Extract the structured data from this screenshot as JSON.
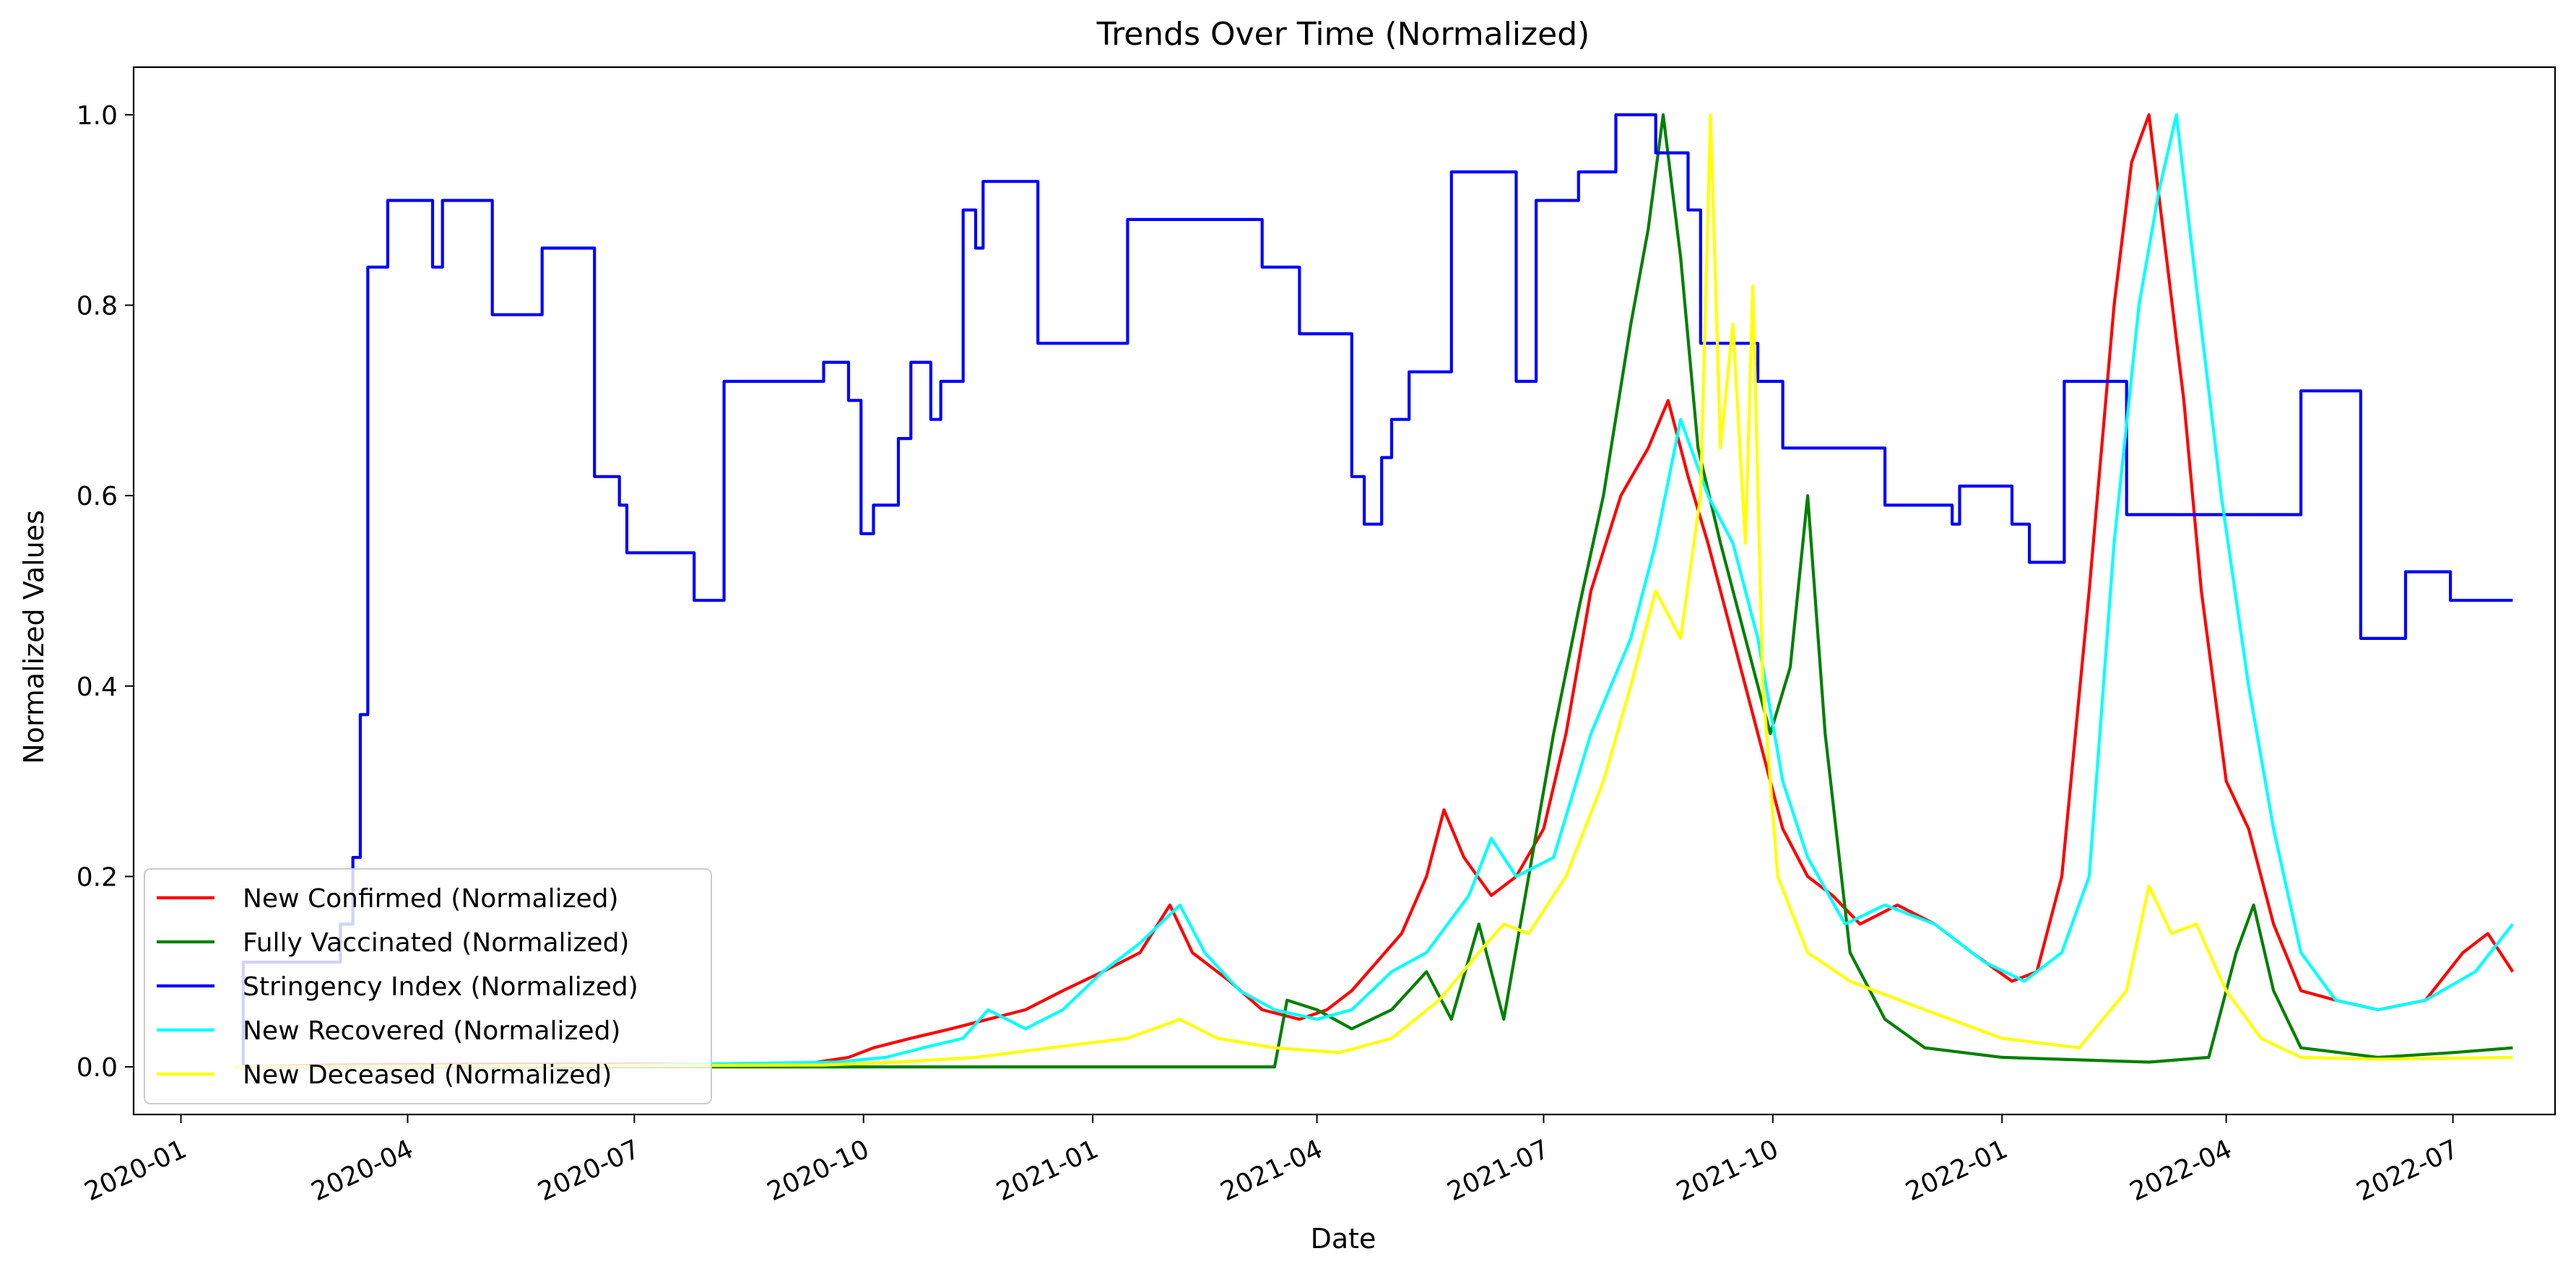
{
  "chart_data": {
    "type": "line",
    "title": "Trends Over Time (Normalized)",
    "xlabel": "Date",
    "ylabel": "Normalized Values",
    "xlim": [
      "2019-12-13",
      "2022-08-11"
    ],
    "ylim": [
      -0.05,
      1.05
    ],
    "grid": false,
    "legend_position": "lower-left",
    "x_ticks": [
      "2020-01",
      "2020-04",
      "2020-07",
      "2020-10",
      "2021-01",
      "2021-04",
      "2021-07",
      "2021-10",
      "2022-01",
      "2022-04",
      "2022-07"
    ],
    "y_ticks": [
      "0.0",
      "0.2",
      "0.4",
      "0.6",
      "0.8",
      "1.0"
    ],
    "series": [
      {
        "name": "New Confirmed (Normalized)",
        "color": "#ff0000",
        "points": [
          [
            "2020-01-22",
            0
          ],
          [
            "2020-03-01",
            0.002
          ],
          [
            "2020-05-01",
            0.003
          ],
          [
            "2020-07-01",
            0.003
          ],
          [
            "2020-08-15",
            0.003
          ],
          [
            "2020-09-10",
            0.004
          ],
          [
            "2020-09-25",
            0.01
          ],
          [
            "2020-10-05",
            0.02
          ],
          [
            "2020-10-20",
            0.03
          ],
          [
            "2020-11-05",
            0.04
          ],
          [
            "2020-11-20",
            0.05
          ],
          [
            "2020-12-05",
            0.06
          ],
          [
            "2020-12-20",
            0.08
          ],
          [
            "2021-01-05",
            0.1
          ],
          [
            "2021-01-20",
            0.12
          ],
          [
            "2021-02-01",
            0.17
          ],
          [
            "2021-02-10",
            0.12
          ],
          [
            "2021-02-25",
            0.09
          ],
          [
            "2021-03-10",
            0.06
          ],
          [
            "2021-03-25",
            0.05
          ],
          [
            "2021-04-05",
            0.06
          ],
          [
            "2021-04-15",
            0.08
          ],
          [
            "2021-04-25",
            0.11
          ],
          [
            "2021-05-05",
            0.14
          ],
          [
            "2021-05-15",
            0.2
          ],
          [
            "2021-05-22",
            0.27
          ],
          [
            "2021-05-30",
            0.22
          ],
          [
            "2021-06-10",
            0.18
          ],
          [
            "2021-06-20",
            0.2
          ],
          [
            "2021-07-01",
            0.25
          ],
          [
            "2021-07-10",
            0.35
          ],
          [
            "2021-07-20",
            0.5
          ],
          [
            "2021-08-01",
            0.6
          ],
          [
            "2021-08-12",
            0.65
          ],
          [
            "2021-08-20",
            0.7
          ],
          [
            "2021-08-28",
            0.62
          ],
          [
            "2021-09-05",
            0.55
          ],
          [
            "2021-09-15",
            0.45
          ],
          [
            "2021-09-25",
            0.35
          ],
          [
            "2021-10-05",
            0.25
          ],
          [
            "2021-10-15",
            0.2
          ],
          [
            "2021-10-25",
            0.18
          ],
          [
            "2021-11-05",
            0.15
          ],
          [
            "2021-11-20",
            0.17
          ],
          [
            "2021-12-05",
            0.15
          ],
          [
            "2021-12-20",
            0.12
          ],
          [
            "2022-01-05",
            0.09
          ],
          [
            "2022-01-15",
            0.1
          ],
          [
            "2022-01-25",
            0.2
          ],
          [
            "2022-02-05",
            0.5
          ],
          [
            "2022-02-15",
            0.8
          ],
          [
            "2022-02-22",
            0.95
          ],
          [
            "2022-03-01",
            1.0
          ],
          [
            "2022-03-08",
            0.85
          ],
          [
            "2022-03-15",
            0.7
          ],
          [
            "2022-03-22",
            0.5
          ],
          [
            "2022-04-01",
            0.3
          ],
          [
            "2022-04-10",
            0.25
          ],
          [
            "2022-04-20",
            0.15
          ],
          [
            "2022-05-01",
            0.08
          ],
          [
            "2022-05-15",
            0.07
          ],
          [
            "2022-06-01",
            0.06
          ],
          [
            "2022-06-20",
            0.07
          ],
          [
            "2022-07-05",
            0.12
          ],
          [
            "2022-07-15",
            0.14
          ],
          [
            "2022-07-25",
            0.1
          ]
        ]
      },
      {
        "name": "Fully Vaccinated (Normalized)",
        "color": "#008000",
        "points": [
          [
            "2020-01-22",
            0
          ],
          [
            "2021-03-15",
            0
          ],
          [
            "2021-03-20",
            0.07
          ],
          [
            "2021-04-01",
            0.06
          ],
          [
            "2021-04-15",
            0.04
          ],
          [
            "2021-05-01",
            0.06
          ],
          [
            "2021-05-15",
            0.1
          ],
          [
            "2021-05-25",
            0.05
          ],
          [
            "2021-06-05",
            0.15
          ],
          [
            "2021-06-15",
            0.05
          ],
          [
            "2021-06-25",
            0.2
          ],
          [
            "2021-07-05",
            0.35
          ],
          [
            "2021-07-15",
            0.48
          ],
          [
            "2021-07-25",
            0.6
          ],
          [
            "2021-08-05",
            0.78
          ],
          [
            "2021-08-12",
            0.88
          ],
          [
            "2021-08-18",
            1.0
          ],
          [
            "2021-08-25",
            0.85
          ],
          [
            "2021-09-01",
            0.65
          ],
          [
            "2021-09-10",
            0.55
          ],
          [
            "2021-09-20",
            0.45
          ],
          [
            "2021-09-30",
            0.35
          ],
          [
            "2021-10-08",
            0.42
          ],
          [
            "2021-10-15",
            0.6
          ],
          [
            "2021-10-22",
            0.35
          ],
          [
            "2021-11-01",
            0.12
          ],
          [
            "2021-11-15",
            0.05
          ],
          [
            "2021-12-01",
            0.02
          ],
          [
            "2022-01-01",
            0.01
          ],
          [
            "2022-03-01",
            0.005
          ],
          [
            "2022-03-25",
            0.01
          ],
          [
            "2022-04-05",
            0.12
          ],
          [
            "2022-04-12",
            0.17
          ],
          [
            "2022-04-20",
            0.08
          ],
          [
            "2022-05-01",
            0.02
          ],
          [
            "2022-06-01",
            0.01
          ],
          [
            "2022-07-01",
            0.015
          ],
          [
            "2022-07-25",
            0.02
          ]
        ]
      },
      {
        "name": "Stringency Index (Normalized)",
        "color": "#0000ff",
        "step": true,
        "points": [
          [
            "2020-01-22",
            0
          ],
          [
            "2020-01-26",
            0.11
          ],
          [
            "2020-02-15",
            0.11
          ],
          [
            "2020-03-05",
            0.15
          ],
          [
            "2020-03-10",
            0.22
          ],
          [
            "2020-03-13",
            0.37
          ],
          [
            "2020-03-16",
            0.84
          ],
          [
            "2020-03-24",
            0.91
          ],
          [
            "2020-04-11",
            0.84
          ],
          [
            "2020-04-15",
            0.91
          ],
          [
            "2020-05-05",
            0.79
          ],
          [
            "2020-05-25",
            0.86
          ],
          [
            "2020-06-15",
            0.62
          ],
          [
            "2020-06-25",
            0.59
          ],
          [
            "2020-06-28",
            0.54
          ],
          [
            "2020-07-25",
            0.49
          ],
          [
            "2020-08-06",
            0.72
          ],
          [
            "2020-09-15",
            0.74
          ],
          [
            "2020-09-25",
            0.7
          ],
          [
            "2020-09-30",
            0.56
          ],
          [
            "2020-10-05",
            0.59
          ],
          [
            "2020-10-15",
            0.66
          ],
          [
            "2020-10-20",
            0.74
          ],
          [
            "2020-10-28",
            0.68
          ],
          [
            "2020-11-01",
            0.72
          ],
          [
            "2020-11-10",
            0.9
          ],
          [
            "2020-11-15",
            0.86
          ],
          [
            "2020-11-18",
            0.93
          ],
          [
            "2020-12-10",
            0.76
          ],
          [
            "2021-01-15",
            0.89
          ],
          [
            "2021-03-10",
            0.84
          ],
          [
            "2021-03-25",
            0.77
          ],
          [
            "2021-04-15",
            0.62
          ],
          [
            "2021-04-20",
            0.57
          ],
          [
            "2021-04-27",
            0.64
          ],
          [
            "2021-05-01",
            0.68
          ],
          [
            "2021-05-08",
            0.73
          ],
          [
            "2021-05-25",
            0.94
          ],
          [
            "2021-06-20",
            0.72
          ],
          [
            "2021-06-28",
            0.91
          ],
          [
            "2021-07-15",
            0.94
          ],
          [
            "2021-07-30",
            1.0
          ],
          [
            "2021-08-15",
            0.96
          ],
          [
            "2021-08-28",
            0.9
          ],
          [
            "2021-09-02",
            0.76
          ],
          [
            "2021-09-25",
            0.72
          ],
          [
            "2021-10-05",
            0.65
          ],
          [
            "2021-11-15",
            0.59
          ],
          [
            "2021-12-12",
            0.57
          ],
          [
            "2021-12-15",
            0.61
          ],
          [
            "2022-01-05",
            0.57
          ],
          [
            "2022-01-12",
            0.53
          ],
          [
            "2022-01-26",
            0.72
          ],
          [
            "2022-02-20",
            0.58
          ],
          [
            "2022-05-01",
            0.71
          ],
          [
            "2022-05-25",
            0.45
          ],
          [
            "2022-06-12",
            0.52
          ],
          [
            "2022-06-30",
            0.49
          ],
          [
            "2022-07-25",
            0.49
          ]
        ]
      },
      {
        "name": "New Recovered (Normalized)",
        "color": "#00ffff",
        "points": [
          [
            "2020-01-22",
            0
          ],
          [
            "2020-07-01",
            0.002
          ],
          [
            "2020-09-20",
            0.005
          ],
          [
            "2020-10-10",
            0.01
          ],
          [
            "2020-10-25",
            0.02
          ],
          [
            "2020-11-10",
            0.03
          ],
          [
            "2020-11-20",
            0.06
          ],
          [
            "2020-12-05",
            0.04
          ],
          [
            "2020-12-20",
            0.06
          ],
          [
            "2021-01-05",
            0.1
          ],
          [
            "2021-01-20",
            0.13
          ],
          [
            "2021-02-05",
            0.17
          ],
          [
            "2021-02-15",
            0.12
          ],
          [
            "2021-03-01",
            0.08
          ],
          [
            "2021-03-15",
            0.06
          ],
          [
            "2021-04-01",
            0.05
          ],
          [
            "2021-04-15",
            0.06
          ],
          [
            "2021-05-01",
            0.1
          ],
          [
            "2021-05-15",
            0.12
          ],
          [
            "2021-06-01",
            0.18
          ],
          [
            "2021-06-10",
            0.24
          ],
          [
            "2021-06-20",
            0.2
          ],
          [
            "2021-07-05",
            0.22
          ],
          [
            "2021-07-20",
            0.35
          ],
          [
            "2021-08-05",
            0.45
          ],
          [
            "2021-08-15",
            0.55
          ],
          [
            "2021-08-25",
            0.68
          ],
          [
            "2021-09-05",
            0.6
          ],
          [
            "2021-09-15",
            0.55
          ],
          [
            "2021-09-25",
            0.45
          ],
          [
            "2021-10-05",
            0.3
          ],
          [
            "2021-10-15",
            0.22
          ],
          [
            "2021-10-30",
            0.15
          ],
          [
            "2021-11-15",
            0.17
          ],
          [
            "2021-12-05",
            0.15
          ],
          [
            "2021-12-25",
            0.11
          ],
          [
            "2022-01-10",
            0.09
          ],
          [
            "2022-01-25",
            0.12
          ],
          [
            "2022-02-05",
            0.2
          ],
          [
            "2022-02-15",
            0.55
          ],
          [
            "2022-02-25",
            0.8
          ],
          [
            "2022-03-05",
            0.92
          ],
          [
            "2022-03-12",
            1.0
          ],
          [
            "2022-03-20",
            0.82
          ],
          [
            "2022-03-30",
            0.6
          ],
          [
            "2022-04-10",
            0.4
          ],
          [
            "2022-04-20",
            0.25
          ],
          [
            "2022-05-01",
            0.12
          ],
          [
            "2022-05-15",
            0.07
          ],
          [
            "2022-06-01",
            0.06
          ],
          [
            "2022-06-20",
            0.07
          ],
          [
            "2022-07-10",
            0.1
          ],
          [
            "2022-07-25",
            0.15
          ]
        ]
      },
      {
        "name": "New Deceased (Normalized)",
        "color": "#ffff00",
        "points": [
          [
            "2020-01-22",
            0
          ],
          [
            "2020-09-15",
            0.002
          ],
          [
            "2020-10-15",
            0.005
          ],
          [
            "2020-11-15",
            0.01
          ],
          [
            "2020-12-15",
            0.02
          ],
          [
            "2021-01-15",
            0.03
          ],
          [
            "2021-02-05",
            0.05
          ],
          [
            "2021-02-20",
            0.03
          ],
          [
            "2021-03-15",
            0.02
          ],
          [
            "2021-04-10",
            0.015
          ],
          [
            "2021-05-01",
            0.03
          ],
          [
            "2021-05-20",
            0.07
          ],
          [
            "2021-06-05",
            0.12
          ],
          [
            "2021-06-15",
            0.15
          ],
          [
            "2021-06-25",
            0.14
          ],
          [
            "2021-07-10",
            0.2
          ],
          [
            "2021-07-25",
            0.3
          ],
          [
            "2021-08-05",
            0.4
          ],
          [
            "2021-08-15",
            0.5
          ],
          [
            "2021-08-25",
            0.45
          ],
          [
            "2021-09-02",
            0.6
          ],
          [
            "2021-09-06",
            1.0
          ],
          [
            "2021-09-10",
            0.65
          ],
          [
            "2021-09-15",
            0.78
          ],
          [
            "2021-09-20",
            0.55
          ],
          [
            "2021-09-23",
            0.82
          ],
          [
            "2021-09-27",
            0.4
          ],
          [
            "2021-10-03",
            0.2
          ],
          [
            "2021-10-15",
            0.12
          ],
          [
            "2021-11-01",
            0.09
          ],
          [
            "2021-12-01",
            0.06
          ],
          [
            "2022-01-01",
            0.03
          ],
          [
            "2022-02-01",
            0.02
          ],
          [
            "2022-02-20",
            0.08
          ],
          [
            "2022-03-01",
            0.19
          ],
          [
            "2022-03-10",
            0.14
          ],
          [
            "2022-03-20",
            0.15
          ],
          [
            "2022-04-01",
            0.08
          ],
          [
            "2022-04-15",
            0.03
          ],
          [
            "2022-05-01",
            0.01
          ],
          [
            "2022-06-01",
            0.008
          ],
          [
            "2022-07-25",
            0.01
          ]
        ]
      }
    ]
  }
}
